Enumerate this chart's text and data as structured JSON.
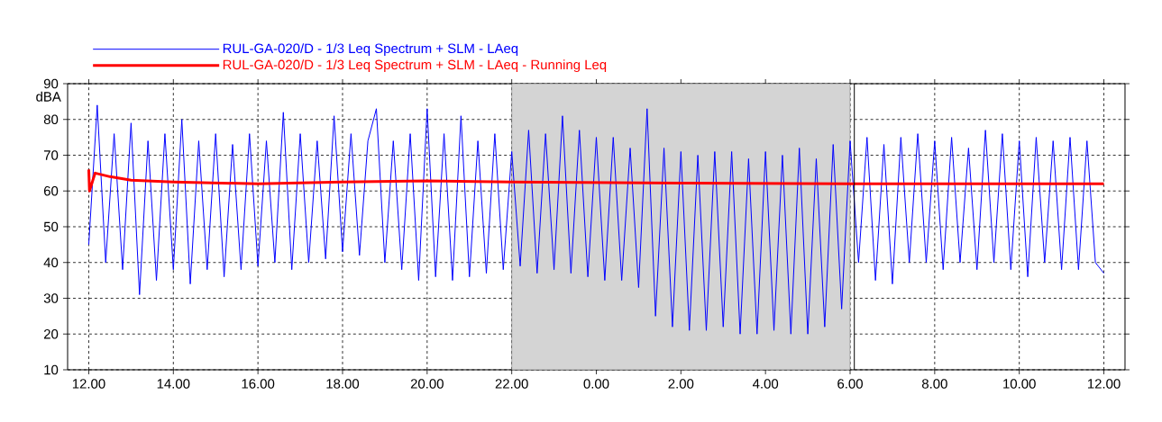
{
  "chart_data": {
    "type": "line",
    "ylabel": "dBA",
    "xlim": [
      "2000-01-01T11:30",
      "2000-01-02T12:30"
    ],
    "ylim": [
      10,
      90
    ],
    "xticks": [
      {
        "value": "2000-01-01T12:00",
        "label": "12.00"
      },
      {
        "value": "2000-01-01T14:00",
        "label": "14.00"
      },
      {
        "value": "2000-01-01T16:00",
        "label": "16.00"
      },
      {
        "value": "2000-01-01T18:00",
        "label": "18.00"
      },
      {
        "value": "2000-01-01T20:00",
        "label": "20.00"
      },
      {
        "value": "2000-01-01T22:00",
        "label": "22.00"
      },
      {
        "value": "2000-01-02T00:00",
        "label": "0.00"
      },
      {
        "value": "2000-01-02T02:00",
        "label": "2.00"
      },
      {
        "value": "2000-01-02T04:00",
        "label": "4.00"
      },
      {
        "value": "2000-01-02T06:00",
        "label": "6.00"
      },
      {
        "value": "2000-01-02T08:00",
        "label": "8.00"
      },
      {
        "value": "2000-01-02T10:00",
        "label": "10.00"
      },
      {
        "value": "2000-01-02T12:00",
        "label": "12.00"
      }
    ],
    "yticks": [
      10,
      20,
      30,
      40,
      50,
      60,
      70,
      80,
      90
    ],
    "grid": true,
    "legend": "top left",
    "marker": "none",
    "line_style": "solid",
    "bands": [
      {
        "axis": "x",
        "from": "2000-01-01T22:00",
        "to": "2000-01-02T06:00",
        "color": "#d4d4d4"
      }
    ],
    "ref_lines": [
      {
        "axis": "x",
        "value": "2000-01-02T06:06",
        "color": "#000000"
      }
    ],
    "series": [
      {
        "name": "RUL-GA-020/D - 1/3 Leq Spectrum + SLM - LAeq",
        "color": "#0000ff",
        "x": [
          "2000-01-01T12:00",
          "2000-01-01T12:12",
          "2000-01-01T12:24",
          "2000-01-01T12:36",
          "2000-01-01T12:48",
          "2000-01-01T13:00",
          "2000-01-01T13:12",
          "2000-01-01T13:24",
          "2000-01-01T13:36",
          "2000-01-01T13:48",
          "2000-01-01T14:00",
          "2000-01-01T14:12",
          "2000-01-01T14:24",
          "2000-01-01T14:36",
          "2000-01-01T14:48",
          "2000-01-01T15:00",
          "2000-01-01T15:12",
          "2000-01-01T15:24",
          "2000-01-01T15:36",
          "2000-01-01T15:48",
          "2000-01-01T16:00",
          "2000-01-01T16:12",
          "2000-01-01T16:24",
          "2000-01-01T16:36",
          "2000-01-01T16:48",
          "2000-01-01T17:00",
          "2000-01-01T17:12",
          "2000-01-01T17:24",
          "2000-01-01T17:36",
          "2000-01-01T17:48",
          "2000-01-01T18:00",
          "2000-01-01T18:12",
          "2000-01-01T18:24",
          "2000-01-01T18:36",
          "2000-01-01T18:48",
          "2000-01-01T19:00",
          "2000-01-01T19:12",
          "2000-01-01T19:24",
          "2000-01-01T19:36",
          "2000-01-01T19:48",
          "2000-01-01T20:00",
          "2000-01-01T20:12",
          "2000-01-01T20:24",
          "2000-01-01T20:36",
          "2000-01-01T20:48",
          "2000-01-01T21:00",
          "2000-01-01T21:12",
          "2000-01-01T21:24",
          "2000-01-01T21:36",
          "2000-01-01T21:48",
          "2000-01-01T22:00",
          "2000-01-01T22:12",
          "2000-01-01T22:24",
          "2000-01-01T22:36",
          "2000-01-01T22:48",
          "2000-01-01T23:00",
          "2000-01-01T23:12",
          "2000-01-01T23:24",
          "2000-01-01T23:36",
          "2000-01-01T23:48",
          "2000-01-02T00:00",
          "2000-01-02T00:12",
          "2000-01-02T00:24",
          "2000-01-02T00:36",
          "2000-01-02T00:48",
          "2000-01-02T01:00",
          "2000-01-02T01:12",
          "2000-01-02T01:24",
          "2000-01-02T01:36",
          "2000-01-02T01:48",
          "2000-01-02T02:00",
          "2000-01-02T02:12",
          "2000-01-02T02:24",
          "2000-01-02T02:36",
          "2000-01-02T02:48",
          "2000-01-02T03:00",
          "2000-01-02T03:12",
          "2000-01-02T03:24",
          "2000-01-02T03:36",
          "2000-01-02T03:48",
          "2000-01-02T04:00",
          "2000-01-02T04:12",
          "2000-01-02T04:24",
          "2000-01-02T04:36",
          "2000-01-02T04:48",
          "2000-01-02T05:00",
          "2000-01-02T05:12",
          "2000-01-02T05:24",
          "2000-01-02T05:36",
          "2000-01-02T05:48",
          "2000-01-02T06:00",
          "2000-01-02T06:12",
          "2000-01-02T06:24",
          "2000-01-02T06:36",
          "2000-01-02T06:48",
          "2000-01-02T07:00",
          "2000-01-02T07:12",
          "2000-01-02T07:24",
          "2000-01-02T07:36",
          "2000-01-02T07:48",
          "2000-01-02T08:00",
          "2000-01-02T08:12",
          "2000-01-02T08:24",
          "2000-01-02T08:36",
          "2000-01-02T08:48",
          "2000-01-02T09:00",
          "2000-01-02T09:12",
          "2000-01-02T09:24",
          "2000-01-02T09:36",
          "2000-01-02T09:48",
          "2000-01-02T10:00",
          "2000-01-02T10:12",
          "2000-01-02T10:24",
          "2000-01-02T10:36",
          "2000-01-02T10:48",
          "2000-01-02T11:00",
          "2000-01-02T11:12",
          "2000-01-02T11:24",
          "2000-01-02T11:36",
          "2000-01-02T11:48",
          "2000-01-02T12:00"
        ],
        "values": [
          45,
          84,
          40,
          76,
          38,
          79,
          31,
          74,
          35,
          76,
          38,
          80,
          34,
          74,
          38,
          76,
          36,
          73,
          38,
          76,
          39,
          74,
          40,
          82,
          38,
          76,
          40,
          74,
          41,
          81,
          43,
          76,
          42,
          74,
          83,
          40,
          74,
          38,
          76,
          35,
          83,
          36,
          76,
          35,
          81,
          36,
          74,
          37,
          76,
          38,
          71,
          39,
          77,
          37,
          76,
          38,
          81,
          37,
          77,
          36,
          75,
          35,
          75,
          35,
          72,
          33,
          83,
          25,
          72,
          22,
          71,
          21,
          70,
          21,
          71,
          22,
          71,
          20,
          69,
          20,
          71,
          21,
          70,
          20,
          72,
          20,
          69,
          22,
          73,
          27,
          74,
          40,
          75,
          35,
          73,
          34,
          75,
          40,
          76,
          40,
          74,
          38,
          75,
          40,
          72,
          38,
          77,
          40,
          76,
          38,
          74,
          36,
          75,
          40,
          74,
          38,
          75,
          38,
          74,
          40,
          37
        ]
      },
      {
        "name": "RUL-GA-020/D - 1/3 Leq Spectrum + SLM - LAeq - Running Leq",
        "color": "#ff0000",
        "x": [
          "2000-01-01T12:00",
          "2000-01-01T12:01",
          "2000-01-01T12:09",
          "2000-01-01T12:30",
          "2000-01-01T13:00",
          "2000-01-01T14:00",
          "2000-01-01T16:00",
          "2000-01-01T18:00",
          "2000-01-01T20:00",
          "2000-01-01T22:00",
          "2000-01-02T02:00",
          "2000-01-02T06:00",
          "2000-01-02T12:00"
        ],
        "values": [
          66,
          60,
          65,
          64,
          63,
          62.5,
          62,
          62.5,
          62.8,
          62.5,
          62.2,
          62,
          62
        ]
      }
    ]
  }
}
